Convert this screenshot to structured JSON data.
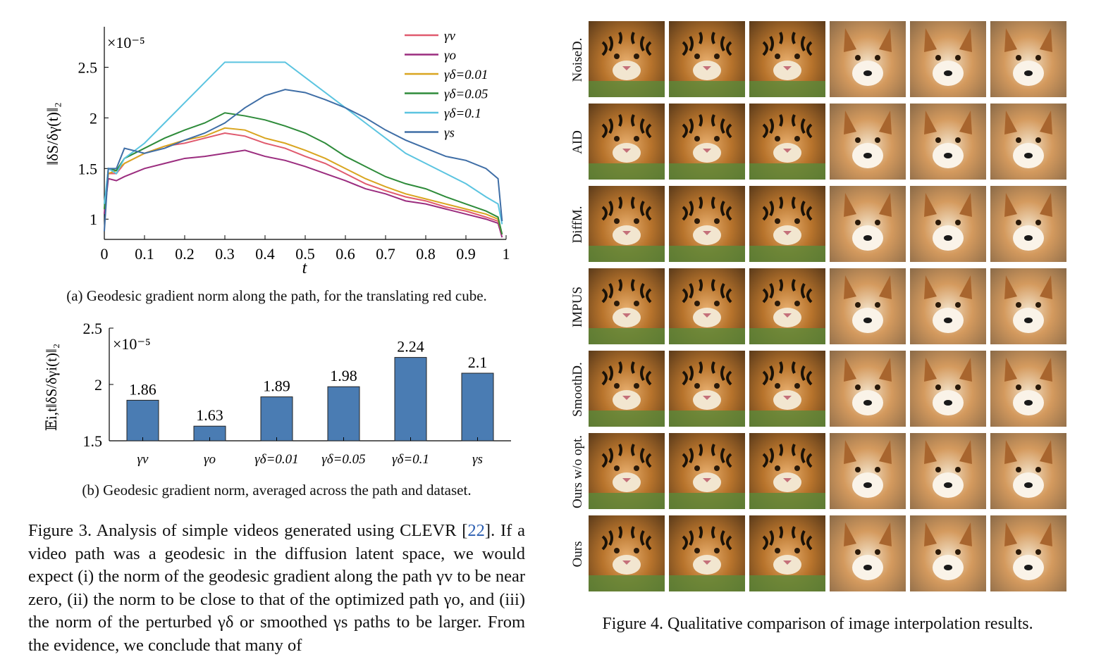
{
  "fig3a": {
    "chart_data": {
      "type": "line",
      "ylabel": "‖δS/δγ(t)‖₂",
      "xlabel": "t",
      "multiplier": "×10⁻⁵",
      "xlim": [
        0,
        1
      ],
      "ylim": [
        0.8,
        2.9
      ],
      "xticks": [
        "0",
        "0.1",
        "0.2",
        "0.3",
        "0.4",
        "0.5",
        "0.6",
        "0.7",
        "0.8",
        "0.9",
        "1"
      ],
      "yticks": [
        "1",
        "1.5",
        "2",
        "2.5"
      ],
      "legend_position": "top-right",
      "series": [
        {
          "name": "γv",
          "color": "#e05a6e",
          "x": [
            0,
            0.01,
            0.03,
            0.05,
            0.1,
            0.15,
            0.2,
            0.25,
            0.3,
            0.35,
            0.4,
            0.45,
            0.5,
            0.55,
            0.6,
            0.65,
            0.7,
            0.75,
            0.8,
            0.85,
            0.9,
            0.95,
            0.98,
            0.99
          ],
          "y": [
            1.05,
            1.45,
            1.45,
            1.55,
            1.65,
            1.72,
            1.75,
            1.8,
            1.85,
            1.82,
            1.75,
            1.7,
            1.62,
            1.55,
            1.45,
            1.35,
            1.28,
            1.22,
            1.18,
            1.12,
            1.08,
            1.02,
            0.98,
            0.85
          ]
        },
        {
          "name": "γo",
          "color": "#9b2d7f",
          "x": [
            0,
            0.01,
            0.03,
            0.05,
            0.1,
            0.15,
            0.2,
            0.25,
            0.3,
            0.35,
            0.4,
            0.45,
            0.5,
            0.55,
            0.6,
            0.65,
            0.7,
            0.75,
            0.8,
            0.85,
            0.9,
            0.95,
            0.98,
            0.99
          ],
          "y": [
            1.05,
            1.4,
            1.38,
            1.42,
            1.5,
            1.55,
            1.6,
            1.62,
            1.65,
            1.68,
            1.62,
            1.58,
            1.52,
            1.45,
            1.38,
            1.3,
            1.25,
            1.18,
            1.15,
            1.1,
            1.05,
            1.0,
            0.96,
            0.82
          ]
        },
        {
          "name": "γδ=0.01",
          "color": "#d9a520",
          "x": [
            0,
            0.01,
            0.03,
            0.05,
            0.1,
            0.15,
            0.2,
            0.25,
            0.3,
            0.35,
            0.4,
            0.45,
            0.5,
            0.55,
            0.6,
            0.65,
            0.7,
            0.75,
            0.8,
            0.85,
            0.9,
            0.95,
            0.98,
            0.99
          ],
          "y": [
            1.1,
            1.45,
            1.48,
            1.55,
            1.65,
            1.72,
            1.78,
            1.82,
            1.9,
            1.88,
            1.8,
            1.75,
            1.68,
            1.6,
            1.5,
            1.4,
            1.32,
            1.25,
            1.2,
            1.15,
            1.1,
            1.05,
            1.0,
            0.85
          ]
        },
        {
          "name": "γδ=0.05",
          "color": "#2e8b3a",
          "x": [
            0,
            0.01,
            0.03,
            0.05,
            0.1,
            0.15,
            0.2,
            0.25,
            0.3,
            0.35,
            0.4,
            0.45,
            0.5,
            0.55,
            0.6,
            0.65,
            0.7,
            0.75,
            0.8,
            0.85,
            0.9,
            0.95,
            0.98,
            0.99
          ],
          "y": [
            1.1,
            1.5,
            1.48,
            1.6,
            1.7,
            1.8,
            1.88,
            1.95,
            2.05,
            2.02,
            1.98,
            1.92,
            1.85,
            1.75,
            1.62,
            1.52,
            1.42,
            1.35,
            1.3,
            1.22,
            1.15,
            1.08,
            1.02,
            0.85
          ]
        },
        {
          "name": "γδ=0.1",
          "color": "#5bc4e0",
          "x": [
            0,
            0.01,
            0.03,
            0.05,
            0.1,
            0.15,
            0.2,
            0.25,
            0.3,
            0.35,
            0.4,
            0.45,
            0.5,
            0.55,
            0.6,
            0.65,
            0.7,
            0.75,
            0.8,
            0.85,
            0.9,
            0.95,
            0.98,
            0.99
          ],
          "y": [
            1.15,
            1.5,
            1.45,
            1.6,
            1.75,
            1.95,
            2.15,
            2.35,
            2.55,
            2.55,
            2.55,
            2.55,
            2.4,
            2.25,
            2.1,
            1.95,
            1.8,
            1.65,
            1.55,
            1.45,
            1.35,
            1.22,
            1.15,
            0.95
          ]
        },
        {
          "name": "γs",
          "color": "#3f6ea6",
          "x": [
            0,
            0.01,
            0.03,
            0.05,
            0.1,
            0.15,
            0.2,
            0.25,
            0.3,
            0.35,
            0.4,
            0.45,
            0.5,
            0.55,
            0.6,
            0.65,
            0.7,
            0.75,
            0.8,
            0.85,
            0.9,
            0.95,
            0.98,
            0.99
          ],
          "y": [
            0.88,
            1.5,
            1.5,
            1.7,
            1.65,
            1.7,
            1.78,
            1.85,
            1.95,
            2.1,
            2.22,
            2.28,
            2.25,
            2.18,
            2.1,
            2.0,
            1.88,
            1.78,
            1.7,
            1.62,
            1.58,
            1.5,
            1.4,
            0.98
          ]
        }
      ]
    },
    "caption": "(a) Geodesic gradient norm along the path, for the translating red cube."
  },
  "fig3b": {
    "chart_data": {
      "type": "bar",
      "ylabel": "𝔼i,t‖δS/δγi(t)‖₂",
      "multiplier": "×10⁻⁵",
      "categories": [
        "γv",
        "γo",
        "γδ=0.01",
        "γδ=0.05",
        "γδ=0.1",
        "γs"
      ],
      "values": [
        1.86,
        1.63,
        1.89,
        1.98,
        2.24,
        2.1
      ],
      "value_labels": [
        "1.86",
        "1.63",
        "1.89",
        "1.98",
        "2.24",
        "2.1"
      ],
      "ylim": [
        1.5,
        2.5
      ],
      "yticks": [
        "1.5",
        "2",
        "2.5"
      ],
      "color": "#4a7cb3"
    },
    "caption": "(b) Geodesic gradient norm, averaged across the path and dataset."
  },
  "fig3_caption": {
    "p1": "Figure 3. Analysis of simple videos generated using CLEVR [",
    "ref": "22",
    "p2": "]. If a video path was a geodesic in the diffusion latent space, we would expect (i) the norm of the geodesic gradient along the path γv to be near zero, (ii) the norm to be close to that of the optimized path γo, and (iii) the norm of the perturbed γδ or smoothed γs paths to be larger. From the evidence, we conclude that many of"
  },
  "fig4": {
    "rows": [
      "NoiseD.",
      "AID",
      "DiffM.",
      "IMPUS",
      "SmoothD.",
      "Ours w/o opt.",
      "Ours"
    ],
    "caption": "Figure 4. Qualitative comparison of image interpolation results."
  }
}
